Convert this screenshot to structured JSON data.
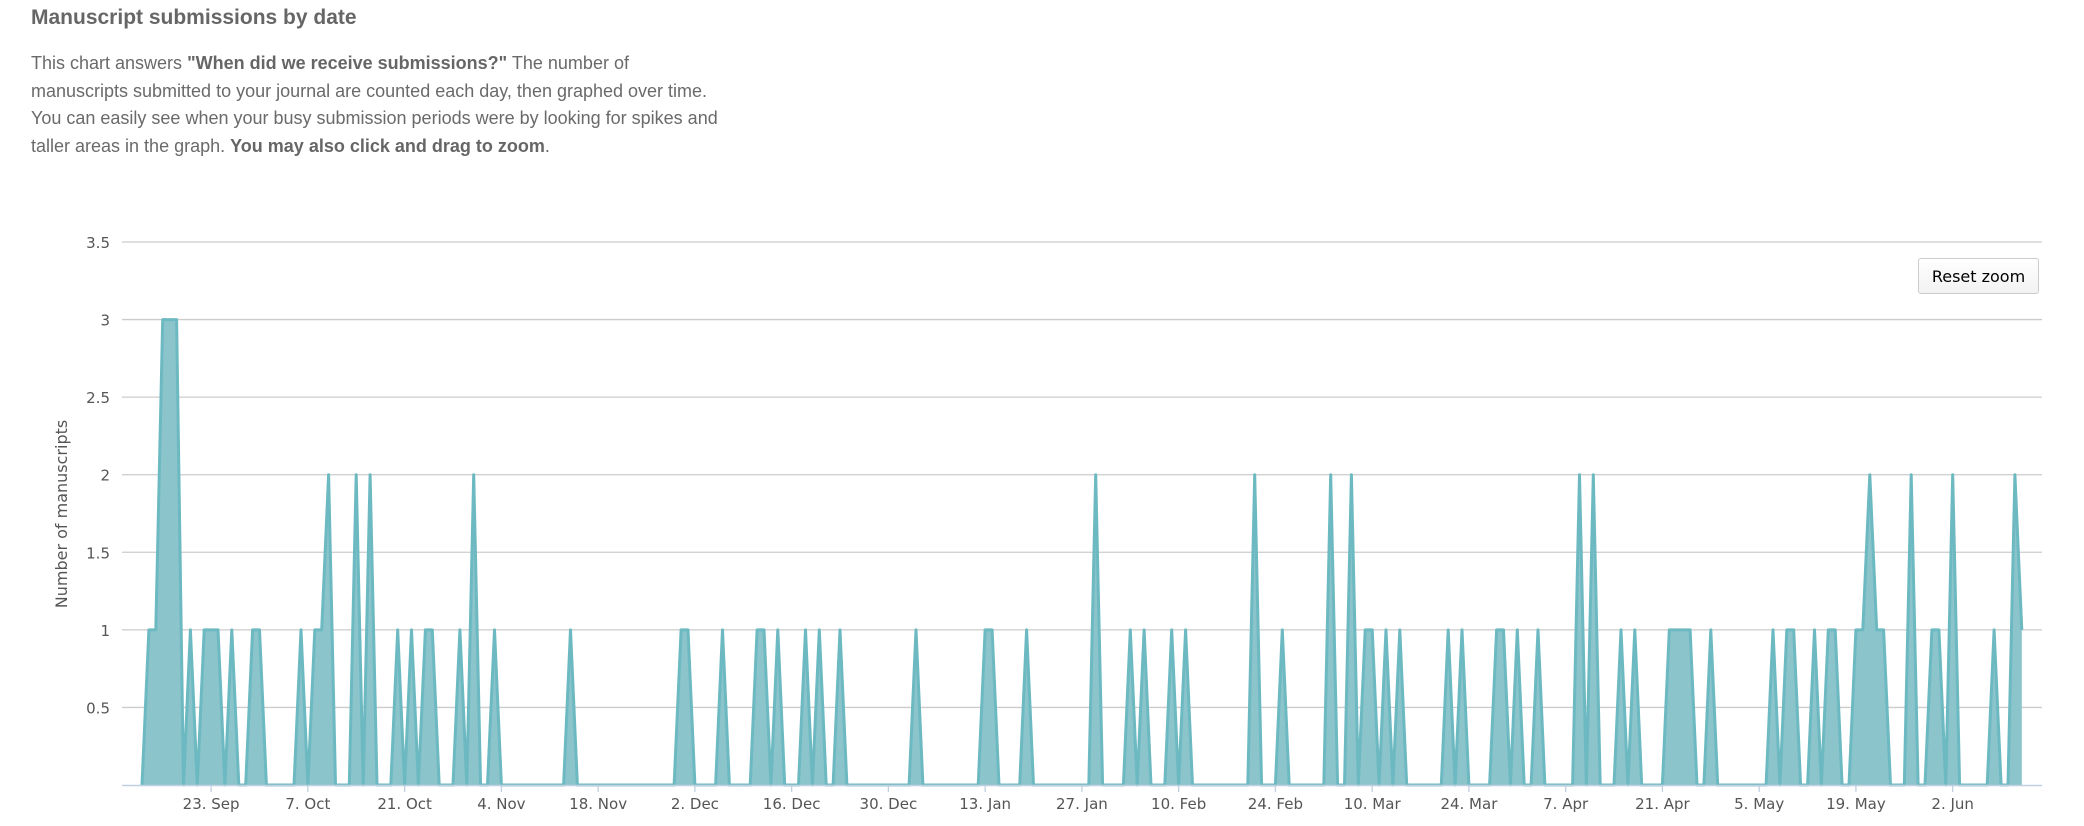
{
  "header": {
    "title": "Manuscript submissions by date",
    "desc_part1": "This chart answers ",
    "desc_bold1": "\"When did we receive submissions?\"",
    "desc_part2": " The number of manuscripts submitted to your journal are counted each day, then graphed over time. You can easily see when your busy submission periods were by looking for spikes and taller areas in the graph. ",
    "desc_bold2": "You may also click and drag to zoom",
    "desc_end": "."
  },
  "reset_zoom_label": "Reset zoom",
  "colors": {
    "fill": "#8bc4cb",
    "line": "#6db9c1",
    "grid": "#cccccc",
    "axis": "#c0d0e0",
    "text": "#666666"
  },
  "chart_data": {
    "type": "area",
    "title": "Manuscript submissions by date",
    "xlabel": "",
    "ylabel": "Number of manuscripts",
    "ylim": [
      0,
      3.5
    ],
    "yticks": [
      "0.5",
      "1",
      "1.5",
      "2",
      "2.5",
      "3",
      "3.5"
    ],
    "yticks_values": [
      0.5,
      1,
      1.5,
      2,
      2.5,
      3,
      3.5
    ],
    "series_start": "13 Sep",
    "days": 273,
    "xtick_first_day": 10,
    "xtick_interval_days": 14,
    "xticks": [
      "23. Sep",
      "7. Oct",
      "21. Oct",
      "4. Nov",
      "18. Nov",
      "2. Dec",
      "16. Dec",
      "30. Dec",
      "13. Jan",
      "27. Jan",
      "10. Feb",
      "24. Feb",
      "10. Mar",
      "24. Mar",
      "7. Apr",
      "21. Apr",
      "5. May",
      "19. May",
      "2. Jun"
    ],
    "nonzero_days_value": [
      [
        1,
        1
      ],
      [
        2,
        1
      ],
      [
        3,
        3
      ],
      [
        4,
        3
      ],
      [
        5,
        3
      ],
      [
        7,
        1
      ],
      [
        9,
        1
      ],
      [
        10,
        1
      ],
      [
        11,
        1
      ],
      [
        13,
        1
      ],
      [
        16,
        1
      ],
      [
        17,
        1
      ],
      [
        23,
        1
      ],
      [
        25,
        1
      ],
      [
        26,
        1
      ],
      [
        27,
        2
      ],
      [
        31,
        2
      ],
      [
        33,
        2
      ],
      [
        37,
        1
      ],
      [
        39,
        1
      ],
      [
        41,
        1
      ],
      [
        42,
        1
      ],
      [
        46,
        1
      ],
      [
        48,
        2
      ],
      [
        51,
        1
      ],
      [
        62,
        1
      ],
      [
        78,
        1
      ],
      [
        79,
        1
      ],
      [
        84,
        1
      ],
      [
        89,
        1
      ],
      [
        90,
        1
      ],
      [
        92,
        1
      ],
      [
        96,
        1
      ],
      [
        98,
        1
      ],
      [
        101,
        1
      ],
      [
        112,
        1
      ],
      [
        122,
        1
      ],
      [
        123,
        1
      ],
      [
        128,
        1
      ],
      [
        138,
        2
      ],
      [
        143,
        1
      ],
      [
        145,
        1
      ],
      [
        149,
        1
      ],
      [
        151,
        1
      ],
      [
        161,
        2
      ],
      [
        165,
        1
      ],
      [
        172,
        2
      ],
      [
        175,
        2
      ],
      [
        177,
        1
      ],
      [
        178,
        1
      ],
      [
        180,
        1
      ],
      [
        182,
        1
      ],
      [
        189,
        1
      ],
      [
        191,
        1
      ],
      [
        196,
        1
      ],
      [
        197,
        1
      ],
      [
        199,
        1
      ],
      [
        202,
        1
      ],
      [
        208,
        2
      ],
      [
        210,
        2
      ],
      [
        214,
        1
      ],
      [
        216,
        1
      ],
      [
        221,
        1
      ],
      [
        222,
        1
      ],
      [
        223,
        1
      ],
      [
        224,
        1
      ],
      [
        227,
        1
      ],
      [
        236,
        1
      ],
      [
        238,
        1
      ],
      [
        239,
        1
      ],
      [
        242,
        1
      ],
      [
        244,
        1
      ],
      [
        245,
        1
      ],
      [
        248,
        1
      ],
      [
        249,
        1
      ],
      [
        250,
        2
      ],
      [
        251,
        1
      ],
      [
        252,
        1
      ],
      [
        256,
        2
      ],
      [
        259,
        1
      ],
      [
        260,
        1
      ],
      [
        262,
        2
      ],
      [
        268,
        1
      ],
      [
        271,
        2
      ],
      [
        272,
        1
      ]
    ],
    "legend": "none",
    "grid": true
  }
}
